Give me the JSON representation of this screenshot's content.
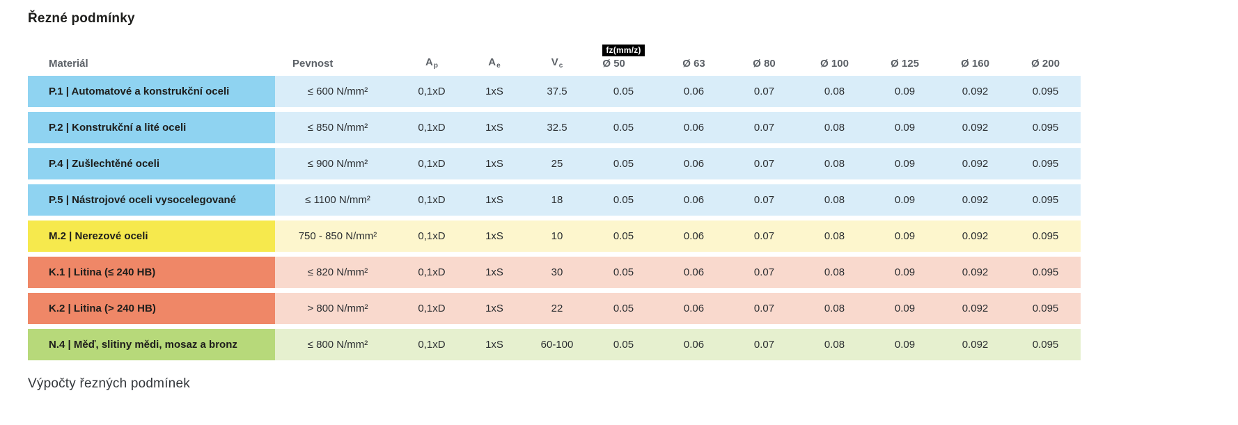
{
  "page": {
    "title": "Řezné podmínky",
    "footer": "Výpočty řezných podmínek"
  },
  "table": {
    "headers": {
      "material": "Materiál",
      "pevnost": "Pevnost",
      "ap_base": "A",
      "ap_sub": "p",
      "ae_base": "A",
      "ae_sub": "e",
      "vc_base": "V",
      "vc_sub": "c",
      "fz_badge": "fz(mm/z)",
      "diameters": [
        "Ø 50",
        "Ø 63",
        "Ø 80",
        "Ø 100",
        "Ø 125",
        "Ø 160",
        "Ø 200"
      ]
    },
    "themes": {
      "blue": {
        "label_bg": "#8fd3f1",
        "cell_bg": "#d9edf9"
      },
      "yellow": {
        "label_bg": "#f6e94d",
        "cell_bg": "#fdf6cd"
      },
      "orange": {
        "label_bg": "#ef8767",
        "cell_bg": "#f9d9cd"
      },
      "green": {
        "label_bg": "#b7d97a",
        "cell_bg": "#e6f0cf"
      }
    },
    "rows": [
      {
        "theme": "blue",
        "material": "P.1 | Automatové a konstrukční oceli",
        "pevnost": "≤ 600 N/mm²",
        "ap": "0,1xD",
        "ae": "1xS",
        "vc": "37.5",
        "fz": [
          "0.05",
          "0.06",
          "0.07",
          "0.08",
          "0.09",
          "0.092",
          "0.095"
        ]
      },
      {
        "theme": "blue",
        "material": "P.2 | Konstrukční a lité oceli",
        "pevnost": "≤ 850 N/mm²",
        "ap": "0,1xD",
        "ae": "1xS",
        "vc": "32.5",
        "fz": [
          "0.05",
          "0.06",
          "0.07",
          "0.08",
          "0.09",
          "0.092",
          "0.095"
        ]
      },
      {
        "theme": "blue",
        "material": "P.4 | Zušlechtěné oceli",
        "pevnost": "≤ 900 N/mm²",
        "ap": "0,1xD",
        "ae": "1xS",
        "vc": "25",
        "fz": [
          "0.05",
          "0.06",
          "0.07",
          "0.08",
          "0.09",
          "0.092",
          "0.095"
        ]
      },
      {
        "theme": "blue",
        "material": "P.5 | Nástrojové oceli vysocelegované",
        "pevnost": "≤ 1100 N/mm²",
        "ap": "0,1xD",
        "ae": "1xS",
        "vc": "18",
        "fz": [
          "0.05",
          "0.06",
          "0.07",
          "0.08",
          "0.09",
          "0.092",
          "0.095"
        ]
      },
      {
        "theme": "yellow",
        "material": "M.2 | Nerezové oceli",
        "pevnost": "750 - 850 N/mm²",
        "ap": "0,1xD",
        "ae": "1xS",
        "vc": "10",
        "fz": [
          "0.05",
          "0.06",
          "0.07",
          "0.08",
          "0.09",
          "0.092",
          "0.095"
        ]
      },
      {
        "theme": "orange",
        "material": "K.1 | Litina (≤ 240 HB)",
        "pevnost": "≤ 820 N/mm²",
        "ap": "0,1xD",
        "ae": "1xS",
        "vc": "30",
        "fz": [
          "0.05",
          "0.06",
          "0.07",
          "0.08",
          "0.09",
          "0.092",
          "0.095"
        ]
      },
      {
        "theme": "orange",
        "material": "K.2 | Litina (> 240 HB)",
        "pevnost": "> 800 N/mm²",
        "ap": "0,1xD",
        "ae": "1xS",
        "vc": "22",
        "fz": [
          "0.05",
          "0.06",
          "0.07",
          "0.08",
          "0.09",
          "0.092",
          "0.095"
        ]
      },
      {
        "theme": "green",
        "material": "N.4 | Měď, slitiny mědi, mosaz a bronz",
        "pevnost": "≤ 800 N/mm²",
        "ap": "0,1xD",
        "ae": "1xS",
        "vc": "60-100",
        "fz": [
          "0.05",
          "0.06",
          "0.07",
          "0.08",
          "0.09",
          "0.092",
          "0.095"
        ]
      }
    ]
  }
}
